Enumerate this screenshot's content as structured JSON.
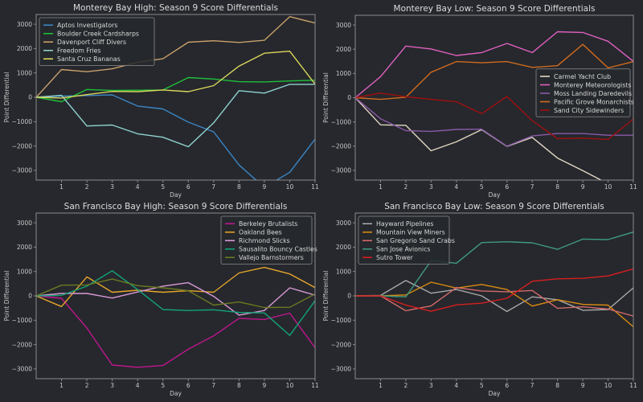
{
  "chart_data": [
    {
      "type": "line",
      "title": "Monterey Bay High: Season 9 Score Differentials",
      "xlabel": "Day",
      "ylabel": "Point Differential",
      "xlim": [
        0,
        11
      ],
      "ylim": [
        -3400,
        3400
      ],
      "xticks": [
        1,
        2,
        3,
        4,
        5,
        6,
        7,
        8,
        9,
        10,
        11
      ],
      "yticks": [
        -3000,
        -2000,
        -1000,
        0,
        1000,
        2000,
        3000
      ],
      "ytick_labels": [
        "−3000",
        "−2000",
        "−1000",
        "0",
        "1000",
        "2000",
        "3000"
      ],
      "grid": false,
      "legend_position": "top-left",
      "x": [
        0,
        1,
        2,
        3,
        4,
        5,
        6,
        7,
        8,
        9,
        10,
        11
      ],
      "series": [
        {
          "name": "Aptos Investigators",
          "color": "#3b86c4",
          "values": [
            0,
            50,
            70,
            100,
            -360,
            -480,
            -1020,
            -1420,
            -2780,
            -3700,
            -3080,
            -1720
          ]
        },
        {
          "name": "Boulder Creek Cardsharps",
          "color": "#1fbf3a",
          "values": [
            0,
            -180,
            320,
            280,
            290,
            300,
            810,
            750,
            640,
            630,
            670,
            700
          ]
        },
        {
          "name": "Davenport Cliff Divers",
          "color": "#c9a06a",
          "values": [
            0,
            1140,
            1050,
            1170,
            1440,
            1580,
            2260,
            2320,
            2250,
            2340,
            3310,
            3050
          ]
        },
        {
          "name": "Freedom Fries",
          "color": "#8fd3cf",
          "values": [
            0,
            80,
            -1180,
            -1140,
            -1500,
            -1640,
            -2030,
            -1050,
            270,
            170,
            530,
            530
          ]
        },
        {
          "name": "Santa Cruz Bananas",
          "color": "#d9d65a",
          "values": [
            0,
            -30,
            110,
            240,
            230,
            300,
            230,
            480,
            1280,
            1810,
            1890,
            540
          ]
        }
      ]
    },
    {
      "type": "line",
      "title": "Monterey Bay Low: Season 9 Score Differentials",
      "xlabel": "Day",
      "ylabel": "Point Differential",
      "xlim": [
        0,
        11
      ],
      "ylim": [
        -3400,
        3400
      ],
      "xticks": [
        1,
        2,
        3,
        4,
        5,
        6,
        7,
        8,
        9,
        10,
        11
      ],
      "yticks": [
        -3000,
        -2000,
        -1000,
        0,
        1000,
        2000,
        3000
      ],
      "ytick_labels": [
        "−3000",
        "−2000",
        "−1000",
        "0",
        "1000",
        "2000",
        "3000"
      ],
      "grid": false,
      "legend_position": "center-right",
      "x": [
        0,
        1,
        2,
        3,
        4,
        5,
        6,
        7,
        8,
        9,
        10,
        11
      ],
      "series": [
        {
          "name": "Carmel Yacht Club",
          "color": "#e2d6c2",
          "values": [
            0,
            -1120,
            -1140,
            -2190,
            -1820,
            -1320,
            -2010,
            -1640,
            -2490,
            -3010,
            -3550,
            -3900
          ]
        },
        {
          "name": "Monterey Meteorologists",
          "color": "#e060c0",
          "values": [
            0,
            870,
            2130,
            2010,
            1740,
            1860,
            2240,
            1860,
            2720,
            2690,
            2330,
            1500
          ]
        },
        {
          "name": "Moss Landing Daredevils",
          "color": "#8a5aa8",
          "values": [
            0,
            -870,
            -1360,
            -1390,
            -1310,
            -1300,
            -2000,
            -1580,
            -1480,
            -1480,
            -1550,
            -1550
          ]
        },
        {
          "name": "Pacific Grove Monarchists",
          "color": "#d06a1e",
          "values": [
            0,
            -70,
            20,
            1050,
            1490,
            1440,
            1490,
            1250,
            1320,
            2200,
            1230,
            1490
          ]
        },
        {
          "name": "Sand City Sidewinders",
          "color": "#a01010",
          "values": [
            0,
            190,
            40,
            -70,
            -170,
            -660,
            50,
            -950,
            -1690,
            -1670,
            -1720,
            -880
          ]
        }
      ]
    },
    {
      "type": "line",
      "title": "San Francisco Bay High: Season 9 Score Differentials",
      "xlabel": "Day",
      "ylabel": "Point Differential",
      "xlim": [
        0,
        11
      ],
      "ylim": [
        -3400,
        3400
      ],
      "xticks": [
        1,
        2,
        3,
        4,
        5,
        6,
        7,
        8,
        9,
        10,
        11
      ],
      "yticks": [
        -3000,
        -2000,
        -1000,
        0,
        1000,
        2000,
        3000
      ],
      "ytick_labels": [
        "−3000",
        "−2000",
        "−1000",
        "0",
        "1000",
        "2000",
        "3000"
      ],
      "grid": false,
      "legend_position": "top-right",
      "x": [
        0,
        1,
        2,
        3,
        4,
        5,
        6,
        7,
        8,
        9,
        10,
        11
      ],
      "series": [
        {
          "name": "Berkeley Brutalists",
          "color": "#c0168e",
          "values": [
            0,
            -100,
            -1320,
            -2840,
            -2930,
            -2860,
            -2190,
            -1640,
            -920,
            -970,
            -710,
            -2130
          ]
        },
        {
          "name": "Oakland Bees",
          "color": "#e6a52a",
          "values": [
            0,
            -440,
            780,
            150,
            230,
            150,
            210,
            150,
            940,
            1170,
            900,
            340
          ]
        },
        {
          "name": "Richmond Slicks",
          "color": "#d99ad6",
          "values": [
            0,
            100,
            100,
            -90,
            160,
            400,
            540,
            -20,
            -790,
            -600,
            330,
            30
          ]
        },
        {
          "name": "Sausalito Bouncy Castles",
          "color": "#13a47a",
          "values": [
            0,
            20,
            400,
            1030,
            260,
            -560,
            -600,
            -570,
            -680,
            -700,
            -1620,
            -200
          ]
        },
        {
          "name": "Vallejo Barnstormers",
          "color": "#6b7a22",
          "values": [
            0,
            440,
            450,
            690,
            420,
            330,
            210,
            -380,
            -250,
            -480,
            -470,
            80
          ]
        }
      ]
    },
    {
      "type": "line",
      "title": "San Francisco Bay Low: Season 9 Score Differentials",
      "xlabel": "Day",
      "ylabel": "Point Differential",
      "xlim": [
        0,
        11
      ],
      "ylim": [
        -3400,
        3400
      ],
      "xticks": [
        1,
        2,
        3,
        4,
        5,
        6,
        7,
        8,
        9,
        10,
        11
      ],
      "yticks": [
        -3000,
        -2000,
        -1000,
        0,
        1000,
        2000,
        3000
      ],
      "ytick_labels": [
        "−3000",
        "−2000",
        "−1000",
        "0",
        "1000",
        "2000",
        "3000"
      ],
      "grid": false,
      "legend_position": "top-left",
      "x": [
        0,
        1,
        2,
        3,
        4,
        5,
        6,
        7,
        8,
        9,
        10,
        11
      ],
      "series": [
        {
          "name": "Hayward Pipelines",
          "color": "#a8a8a8",
          "values": [
            0,
            20,
            630,
            110,
            260,
            0,
            -640,
            -40,
            -160,
            -590,
            -560,
            330
          ]
        },
        {
          "name": "Mountain View Miners",
          "color": "#d98a10",
          "values": [
            0,
            0,
            40,
            560,
            320,
            470,
            260,
            -420,
            -160,
            -350,
            -380,
            -1270
          ]
        },
        {
          "name": "San Gregorio Sand Crabs",
          "color": "#d46a6a",
          "values": [
            0,
            0,
            -610,
            -410,
            340,
            200,
            170,
            220,
            -510,
            -450,
            -540,
            -830
          ]
        },
        {
          "name": "San Jose Avionics",
          "color": "#3f9a7e",
          "values": [
            0,
            0,
            -40,
            1450,
            1340,
            2190,
            2220,
            2180,
            1910,
            2330,
            2310,
            2620
          ]
        },
        {
          "name": "Sutro Tower",
          "color": "#d81e1e",
          "values": [
            0,
            0,
            -380,
            -630,
            -370,
            -300,
            -100,
            600,
            700,
            720,
            820,
            1110
          ]
        }
      ]
    }
  ]
}
